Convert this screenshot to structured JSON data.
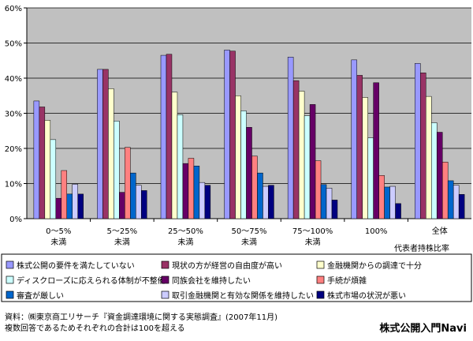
{
  "chart_data": {
    "type": "bar",
    "categories": [
      "0～5%\n未満",
      "5～25%\n未満",
      "25～50%\n未満",
      "50～75%\n未満",
      "75～100%\n未満",
      "100%",
      "全体"
    ],
    "xlabel": "代表者持株比率",
    "ylim": [
      0,
      60
    ],
    "yticks": [
      0,
      10,
      20,
      30,
      40,
      50,
      60
    ],
    "ytick_labels": [
      "0%",
      "10%",
      "20%",
      "30%",
      "40%",
      "50%",
      "60%"
    ],
    "grid": true,
    "plot_background": "#c0c0c0",
    "legend_position": "bottom",
    "legend_rows": [
      [
        0,
        1,
        2
      ],
      [
        3,
        4,
        5
      ],
      [
        6,
        7,
        8
      ]
    ],
    "series": [
      {
        "name": "株式公開の要件を満たしていない",
        "color": "#9999ff",
        "values": [
          33.5,
          42.5,
          46.5,
          48,
          46,
          45.2,
          44.2
        ]
      },
      {
        "name": "現状の方が経営の自由度が高い",
        "color": "#993366",
        "values": [
          31.8,
          42.5,
          46.8,
          47.7,
          39.3,
          40.8,
          41.5
        ]
      },
      {
        "name": "金融機関からの調達で十分",
        "color": "#ffffcc",
        "values": [
          28,
          37,
          36,
          35,
          36.3,
          34.5,
          34.8
        ]
      },
      {
        "name": "ディスクローズに応えられる体制が不整備",
        "color": "#ccffff",
        "values": [
          22.5,
          27.8,
          29.6,
          30.7,
          29.3,
          23,
          27.3
        ]
      },
      {
        "name": "同族会社を維持したい",
        "color": "#660066",
        "values": [
          5.8,
          7.5,
          15.7,
          26,
          32.5,
          38.7,
          24.6
        ]
      },
      {
        "name": "手続が煩雑",
        "color": "#ff8080",
        "values": [
          13.7,
          20.3,
          17.2,
          17.8,
          16.5,
          12.3,
          16.1
        ]
      },
      {
        "name": "審査が厳しい",
        "color": "#0066cc",
        "values": [
          7,
          13,
          15,
          13,
          9.7,
          9,
          10.8
        ]
      },
      {
        "name": "取引金融機関と有効な関係を維持したい",
        "color": "#ccccff",
        "values": [
          9.8,
          9.5,
          10.3,
          9.2,
          8.7,
          9.2,
          9.5
        ]
      },
      {
        "name": "株式市場の状況が悪い",
        "color": "#000080",
        "values": [
          7,
          8,
          9.5,
          9.5,
          5.3,
          4.3,
          6.9
        ]
      }
    ]
  },
  "source_lines": [
    "資料：㈱東京商工リサーチ『資金調達環境に関する実態調査』(2007年11月)",
    "複数回答であるためそれぞれの合計は100を超える"
  ],
  "brand": "株式公開入門Navi"
}
